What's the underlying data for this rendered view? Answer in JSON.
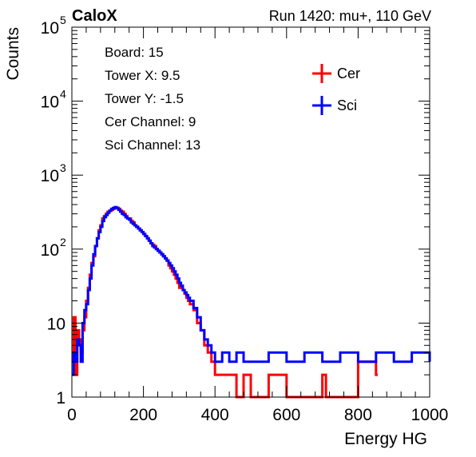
{
  "header": {
    "left_title": "CaloX",
    "right_title": "Run 1420: mu+, 110 GeV"
  },
  "info_box": {
    "lines": [
      "Board: 15",
      "Tower X: 9.5",
      "Tower Y: -1.5",
      "Cer Channel: 9",
      "Sci Channel: 13"
    ]
  },
  "chart_data": {
    "type": "line",
    "title": "",
    "xlabel": "Energy HG",
    "ylabel": "Counts",
    "xlim": [
      0,
      1000
    ],
    "ylim": [
      1,
      100000
    ],
    "y_scale": "log",
    "x_ticks": [
      0,
      200,
      400,
      600,
      800,
      1000
    ],
    "x_tick_labels": [
      "0",
      "200",
      "400",
      "600",
      "800",
      "1000"
    ],
    "y_ticks": [
      1,
      10,
      100,
      1000,
      10000,
      100000
    ],
    "y_tick_labels": [
      {
        "base": "1",
        "exp": ""
      },
      {
        "base": "10",
        "exp": ""
      },
      {
        "base": "10",
        "exp": "2"
      },
      {
        "base": "10",
        "exp": "3"
      },
      {
        "base": "10",
        "exp": "4"
      },
      {
        "base": "10",
        "exp": "5"
      }
    ],
    "legend_position": "top-right",
    "series": [
      {
        "name": "Cer",
        "color": "#ff0000",
        "x": [
          0,
          5,
          10,
          15,
          20,
          25,
          30,
          35,
          40,
          45,
          50,
          55,
          60,
          65,
          70,
          75,
          80,
          85,
          90,
          95,
          100,
          105,
          110,
          115,
          120,
          125,
          130,
          135,
          140,
          145,
          150,
          155,
          160,
          165,
          170,
          175,
          180,
          185,
          190,
          195,
          200,
          205,
          210,
          215,
          220,
          225,
          230,
          235,
          240,
          245,
          250,
          255,
          260,
          265,
          270,
          275,
          280,
          285,
          290,
          295,
          300,
          305,
          310,
          315,
          320,
          325,
          330,
          340,
          350,
          360,
          370,
          380,
          390,
          400,
          420,
          440,
          460,
          480,
          500,
          550,
          600,
          700,
          710,
          800,
          850
        ],
        "y": [
          3,
          12,
          2,
          8,
          6,
          4,
          8,
          12,
          20,
          30,
          45,
          65,
          80,
          110,
          140,
          180,
          210,
          260,
          280,
          300,
          320,
          330,
          340,
          350,
          360,
          360,
          350,
          330,
          320,
          300,
          280,
          260,
          260,
          240,
          230,
          210,
          200,
          190,
          180,
          170,
          160,
          150,
          140,
          130,
          120,
          115,
          110,
          100,
          95,
          90,
          85,
          80,
          75,
          70,
          60,
          55,
          50,
          45,
          40,
          35,
          30,
          30,
          28,
          25,
          22,
          20,
          18,
          15,
          10,
          8,
          5,
          4,
          3,
          2,
          2,
          2,
          1,
          2,
          1,
          2,
          1,
          2,
          1,
          3,
          2
        ]
      },
      {
        "name": "Sci",
        "color": "#0000ff",
        "x": [
          0,
          5,
          10,
          15,
          20,
          25,
          30,
          35,
          40,
          45,
          50,
          55,
          60,
          65,
          70,
          75,
          80,
          85,
          90,
          95,
          100,
          105,
          110,
          115,
          120,
          125,
          130,
          135,
          140,
          145,
          150,
          155,
          160,
          165,
          170,
          175,
          180,
          185,
          190,
          195,
          200,
          205,
          210,
          215,
          220,
          225,
          230,
          235,
          240,
          245,
          250,
          255,
          260,
          265,
          270,
          275,
          280,
          285,
          290,
          295,
          300,
          305,
          310,
          315,
          320,
          325,
          330,
          340,
          350,
          360,
          370,
          380,
          390,
          400,
          420,
          440,
          460,
          480,
          500,
          550,
          600,
          650,
          700,
          750,
          800,
          850,
          900,
          950,
          1000
        ],
        "y": [
          2,
          4,
          3,
          6,
          5,
          3,
          10,
          15,
          18,
          28,
          40,
          60,
          85,
          110,
          140,
          170,
          200,
          240,
          270,
          290,
          310,
          330,
          350,
          360,
          370,
          360,
          340,
          320,
          300,
          290,
          270,
          260,
          250,
          230,
          220,
          210,
          200,
          190,
          180,
          170,
          160,
          150,
          140,
          130,
          120,
          110,
          105,
          100,
          95,
          90,
          85,
          80,
          75,
          70,
          65,
          60,
          55,
          50,
          45,
          40,
          35,
          32,
          28,
          26,
          24,
          22,
          20,
          16,
          12,
          8,
          6,
          5,
          4,
          3,
          4,
          3,
          4,
          3,
          3,
          4,
          3,
          4,
          3,
          4,
          3,
          4,
          3,
          4,
          3
        ]
      }
    ]
  }
}
